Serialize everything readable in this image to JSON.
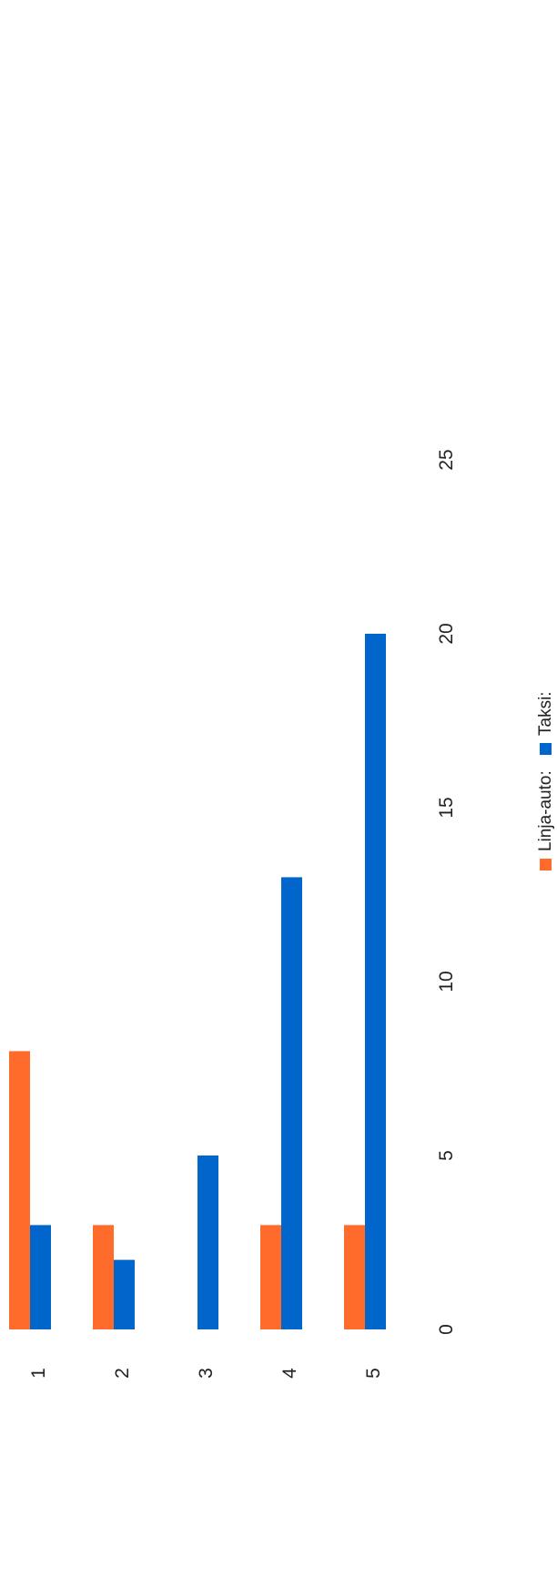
{
  "chart_data": {
    "type": "bar",
    "orientation": "horizontal-rotated",
    "categories": [
      "1",
      "2",
      "3",
      "4",
      "5"
    ],
    "series": [
      {
        "name": "Linja-auto:",
        "color": "#ff6b2b",
        "values": [
          8,
          3,
          0,
          3,
          3
        ]
      },
      {
        "name": "Taksi:",
        "color": "#0066cc",
        "values": [
          3,
          2,
          5,
          13,
          20
        ]
      }
    ],
    "value_axis": {
      "min": 0,
      "max": 25,
      "ticks": [
        0,
        5,
        10,
        15,
        20,
        25
      ]
    },
    "grid": false,
    "legend_position": "right"
  }
}
